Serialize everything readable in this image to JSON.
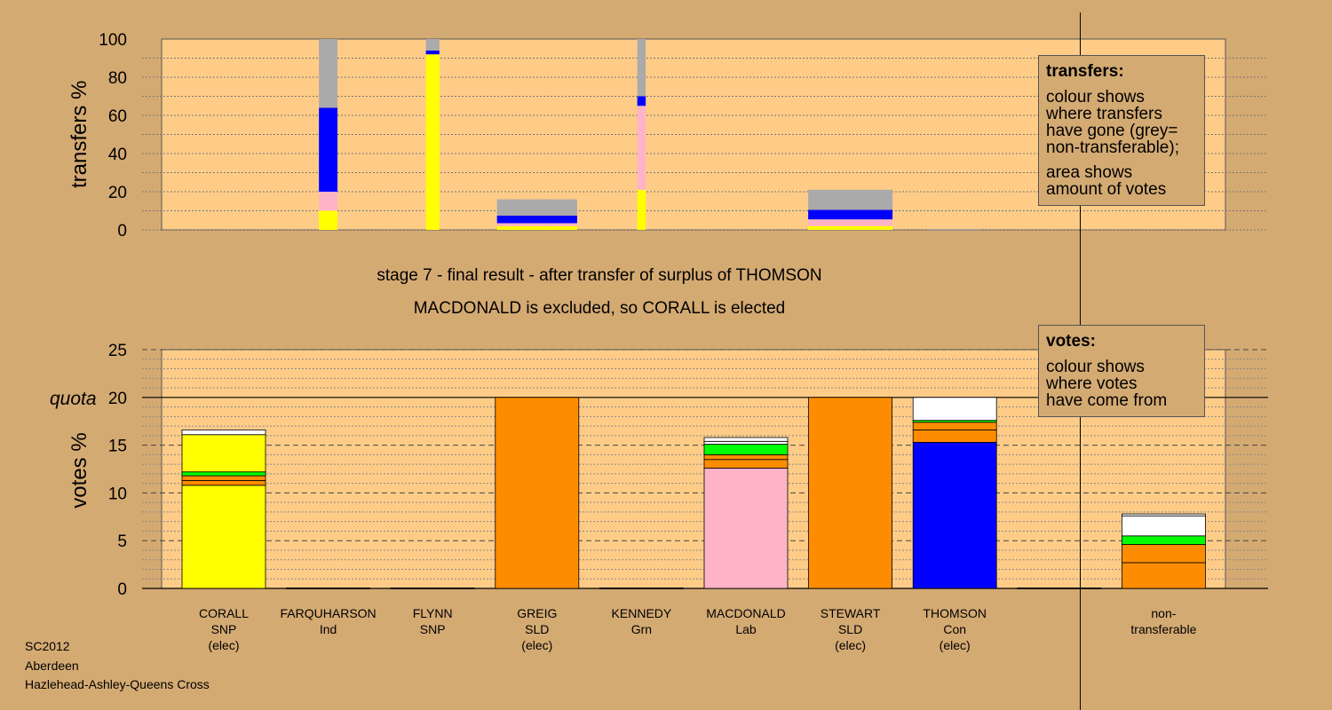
{
  "chart_data": [
    {
      "type": "bar",
      "title": "",
      "ylabel": "transfers %",
      "ylim": [
        0,
        100
      ],
      "yticks": [
        0,
        20,
        40,
        60,
        80,
        100
      ],
      "bars": [
        {
          "x": 0,
          "width": 0,
          "segments": []
        },
        {
          "x": 1,
          "width": 0.22,
          "segments": [
            {
              "color": "#ffff00",
              "from": 0,
              "to": 10
            },
            {
              "color": "#ffb3c6",
              "from": 10,
              "to": 20
            },
            {
              "color": "#0000ff",
              "from": 20,
              "to": 64
            },
            {
              "color": "#aaaaaa",
              "from": 64,
              "to": 100
            }
          ]
        },
        {
          "x": 2,
          "width": 0.16,
          "segments": [
            {
              "color": "#ffff00",
              "from": 0,
              "to": 92
            },
            {
              "color": "#0000ff",
              "from": 92,
              "to": 94
            },
            {
              "color": "#aaaaaa",
              "from": 94,
              "to": 100
            }
          ]
        },
        {
          "x": 3,
          "width": 0.95,
          "segments": [
            {
              "color": "#ffff00",
              "from": 0,
              "to": 2
            },
            {
              "color": "#ffb3c6",
              "from": 2,
              "to": 3.5
            },
            {
              "color": "#0000ff",
              "from": 3.5,
              "to": 7.5
            },
            {
              "color": "#aaaaaa",
              "from": 7.5,
              "to": 16
            }
          ]
        },
        {
          "x": 4,
          "width": 0.1,
          "segments": [
            {
              "color": "#ffff00",
              "from": 0,
              "to": 21
            },
            {
              "color": "#ffb3c6",
              "from": 21,
              "to": 65
            },
            {
              "color": "#0000ff",
              "from": 65,
              "to": 70
            },
            {
              "color": "#aaaaaa",
              "from": 70,
              "to": 100
            }
          ]
        },
        {
          "x": 5,
          "width": 0,
          "segments": []
        },
        {
          "x": 6,
          "width": 1.0,
          "segments": [
            {
              "color": "#ffff00",
              "from": 0,
              "to": 2
            },
            {
              "color": "#ffb3c6",
              "from": 2,
              "to": 5.5
            },
            {
              "color": "#0000ff",
              "from": 5.5,
              "to": 10.5
            },
            {
              "color": "#aaaaaa",
              "from": 10.5,
              "to": 21
            }
          ]
        },
        {
          "x": 7,
          "width": 0.6,
          "segments": [
            {
              "color": "#aaaaaa",
              "from": 0,
              "to": 0.5
            }
          ]
        }
      ]
    },
    {
      "type": "bar",
      "title": "",
      "ylabel": "votes %",
      "ylim": [
        0,
        25
      ],
      "yticks": [
        0,
        5,
        10,
        15,
        20,
        25
      ],
      "quota": 20,
      "quota_label": "quota",
      "categories": [
        {
          "name": "CORALL",
          "party": "SNP",
          "status": "(elec)"
        },
        {
          "name": "FARQUHARSON",
          "party": "Ind",
          "status": ""
        },
        {
          "name": "FLYNN",
          "party": "SNP",
          "status": ""
        },
        {
          "name": "GREIG",
          "party": "SLD",
          "status": "(elec)"
        },
        {
          "name": "KENNEDY",
          "party": "Grn",
          "status": ""
        },
        {
          "name": "MACDONALD",
          "party": "Lab",
          "status": ""
        },
        {
          "name": "STEWART",
          "party": "SLD",
          "status": "(elec)"
        },
        {
          "name": "THOMSON",
          "party": "Con",
          "status": "(elec)"
        },
        {
          "name": "",
          "party": "",
          "status": ""
        },
        {
          "name": "non-",
          "party": "transferable",
          "status": ""
        }
      ],
      "bars": [
        {
          "x": 0,
          "segments": [
            {
              "color": "#ffff00",
              "from": 0,
              "to": 10.8
            },
            {
              "color": "#ff8c00",
              "from": 10.8,
              "to": 11.3
            },
            {
              "color": "#ff8c00",
              "from": 11.3,
              "to": 11.8
            },
            {
              "color": "#00ff00",
              "from": 11.8,
              "to": 12.2
            },
            {
              "color": "#ffff00",
              "from": 12.2,
              "to": 16.1
            },
            {
              "color": "#ffffff",
              "from": 16.1,
              "to": 16.6
            }
          ]
        },
        {
          "x": 1,
          "segments": [
            {
              "color": "#000000",
              "from": 0,
              "to": 0.05
            }
          ]
        },
        {
          "x": 2,
          "segments": [
            {
              "color": "#000000",
              "from": 0,
              "to": 0.05
            }
          ]
        },
        {
          "x": 3,
          "segments": [
            {
              "color": "#ff8c00",
              "from": 0,
              "to": 20
            }
          ]
        },
        {
          "x": 4,
          "segments": [
            {
              "color": "#000000",
              "from": 0,
              "to": 0.05
            }
          ]
        },
        {
          "x": 5,
          "segments": [
            {
              "color": "#ffb3c6",
              "from": 0,
              "to": 12.6
            },
            {
              "color": "#ff8c00",
              "from": 12.6,
              "to": 13.5
            },
            {
              "color": "#ff8c00",
              "from": 13.5,
              "to": 14
            },
            {
              "color": "#00ff00",
              "from": 14,
              "to": 15.1
            },
            {
              "color": "#ffffff",
              "from": 15.1,
              "to": 15.4
            },
            {
              "color": "#ffffff",
              "from": 15.4,
              "to": 15.8
            }
          ]
        },
        {
          "x": 6,
          "segments": [
            {
              "color": "#ff8c00",
              "from": 0,
              "to": 20
            }
          ]
        },
        {
          "x": 7,
          "segments": [
            {
              "color": "#0000ff",
              "from": 0,
              "to": 15.3
            },
            {
              "color": "#ff8c00",
              "from": 15.3,
              "to": 16.6
            },
            {
              "color": "#ff8c00",
              "from": 16.6,
              "to": 17.4
            },
            {
              "color": "#00ff00",
              "from": 17.4,
              "to": 17.6
            },
            {
              "color": "#ffffff",
              "from": 17.6,
              "to": 20
            }
          ]
        },
        {
          "x": 8,
          "segments": [
            {
              "color": "#000000",
              "from": 0,
              "to": 0.05
            }
          ]
        },
        {
          "x": 9,
          "segments": [
            {
              "color": "#ff8c00",
              "from": 0,
              "to": 2.7
            },
            {
              "color": "#ff8c00",
              "from": 2.7,
              "to": 4.6
            },
            {
              "color": "#00ff00",
              "from": 4.6,
              "to": 5.5
            },
            {
              "color": "#ffffff",
              "from": 5.5,
              "to": 7.6
            },
            {
              "color": "#ffffff",
              "from": 7.6,
              "to": 7.8
            }
          ]
        }
      ]
    }
  ],
  "captions": {
    "stage": "stage 7 - final result - after transfer of surplus of THOMSON",
    "elected": "MACDONALD is excluded, so CORALL is elected"
  },
  "legend_transfers": {
    "title": "transfers:",
    "line1": "colour shows",
    "line2": "where transfers",
    "line3": "have gone (grey=",
    "line4": "non-transferable);",
    "line5": "area shows",
    "line6": "amount of votes"
  },
  "legend_votes": {
    "title": "votes:",
    "line1": "colour shows",
    "line2": "where votes",
    "line3": "have come from"
  },
  "footer": {
    "line1": "SC2012",
    "line2": "Aberdeen",
    "line3": "Hazlehead-Ashley-Queens Cross"
  },
  "colors": {
    "background": "#d4aa73",
    "plot_area": "#ffcc88",
    "grey": "#aaaaaa",
    "yellow": "#ffff00",
    "pink": "#ffb3c6",
    "blue": "#0000ff",
    "orange": "#ff8c00",
    "green": "#00ff00"
  }
}
